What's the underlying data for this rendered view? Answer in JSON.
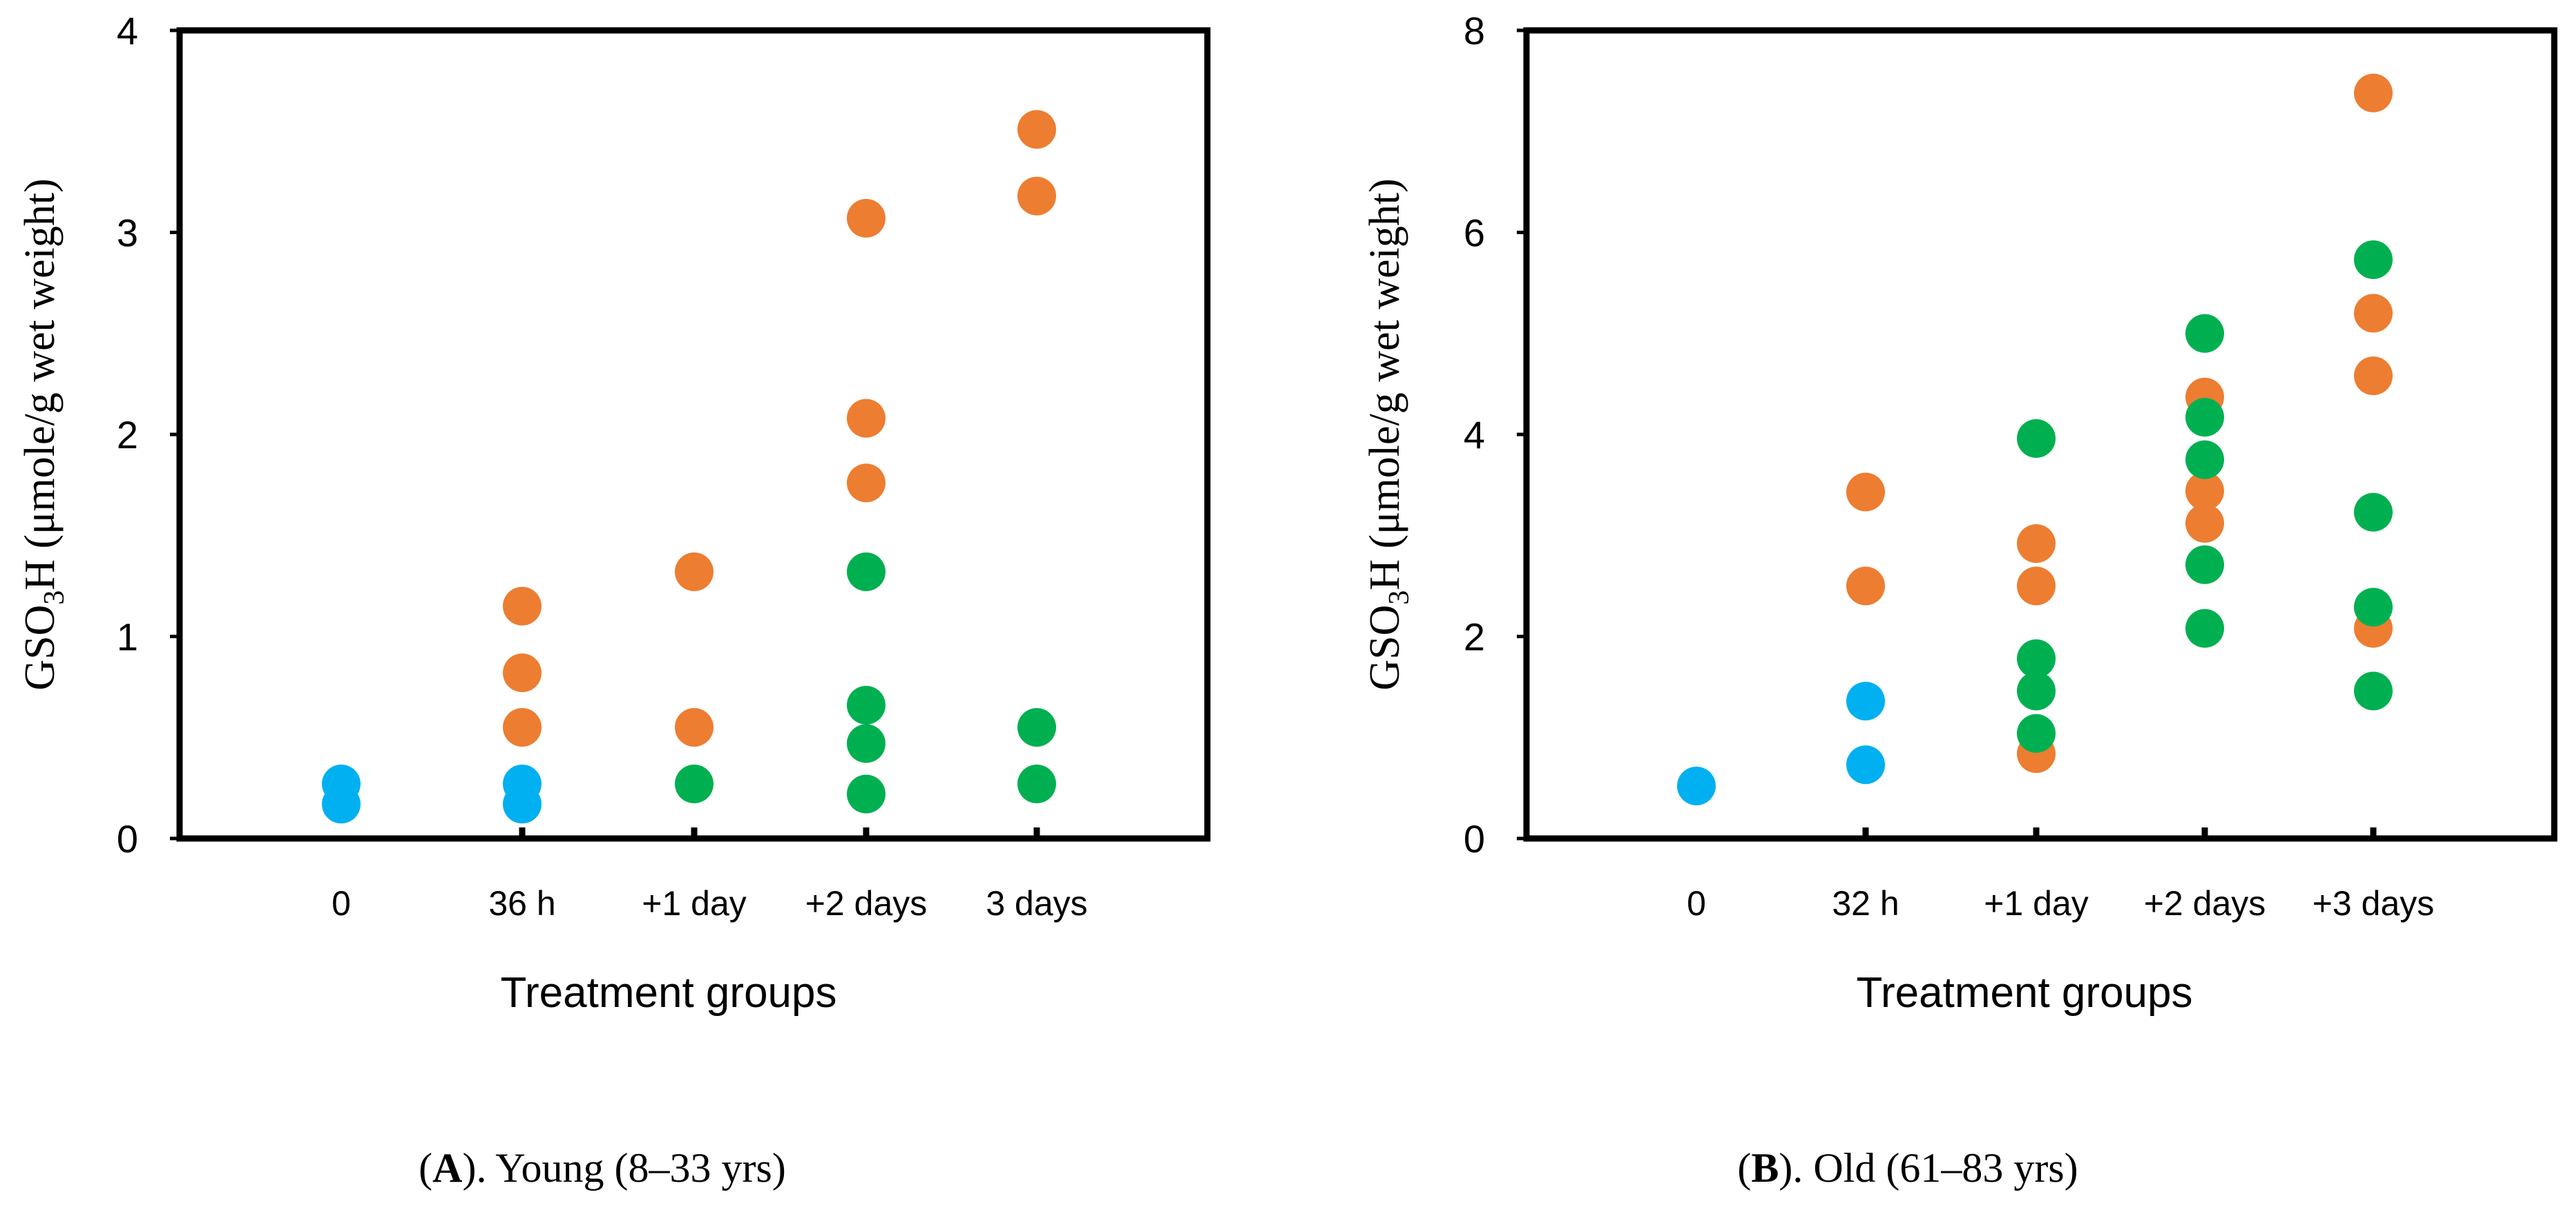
{
  "chart_data": [
    {
      "type": "scatter",
      "panel": "A",
      "caption_letter": "A",
      "caption_text": "). Young (8–33 yrs)",
      "xlabel": "Treatment groups",
      "ylabel": "GSO",
      "ylabel_sub": "3",
      "ylabel_rest": "H (μmole/g wet weight)",
      "ylim": [
        0,
        4
      ],
      "yticks": [
        "0",
        "1",
        "2",
        "3",
        "4"
      ],
      "categories": [
        "0",
        "36 h",
        "+1 day",
        "+2 days",
        "3 days"
      ],
      "series": [
        {
          "name": "blue",
          "color": "#00b0f0",
          "points": [
            [
              0,
              0.27
            ],
            [
              0,
              0.17
            ],
            [
              1,
              0.27
            ],
            [
              1,
              0.17
            ]
          ]
        },
        {
          "name": "orange",
          "color": "#ed7d31",
          "points": [
            [
              1,
              1.15
            ],
            [
              1,
              0.82
            ],
            [
              1,
              0.55
            ],
            [
              2,
              1.32
            ],
            [
              2,
              0.55
            ],
            [
              3,
              3.07
            ],
            [
              3,
              2.08
            ],
            [
              3,
              1.76
            ],
            [
              4,
              3.51
            ],
            [
              4,
              3.18
            ]
          ]
        },
        {
          "name": "green",
          "color": "#00b050",
          "points": [
            [
              2,
              0.27
            ],
            [
              3,
              1.32
            ],
            [
              3,
              0.66
            ],
            [
              3,
              0.47
            ],
            [
              3,
              0.22
            ],
            [
              4,
              0.55
            ],
            [
              4,
              0.27
            ]
          ]
        }
      ]
    },
    {
      "type": "scatter",
      "panel": "B",
      "caption_letter": "B",
      "caption_text": "). Old (61–83 yrs)",
      "xlabel": "Treatment groups",
      "ylabel": "GSO",
      "ylabel_sub": "3",
      "ylabel_rest": "H (μmole/g wet weight)",
      "ylim": [
        0,
        8
      ],
      "yticks": [
        "0",
        "2",
        "4",
        "6",
        "8"
      ],
      "categories": [
        "0",
        "32 h",
        "+1 day",
        "+2 days",
        "+3 days"
      ],
      "series": [
        {
          "name": "blue",
          "color": "#00b0f0",
          "points": [
            [
              0,
              0.52
            ],
            [
              1,
              1.36
            ],
            [
              1,
              0.73
            ]
          ]
        },
        {
          "name": "orange",
          "color": "#ed7d31",
          "points": [
            [
              1,
              3.43
            ],
            [
              1,
              2.5
            ],
            [
              2,
              2.92
            ],
            [
              2,
              2.5
            ],
            [
              2,
              0.84
            ],
            [
              3,
              4.37
            ],
            [
              3,
              3.44
            ],
            [
              3,
              3.12
            ],
            [
              4,
              7.38
            ],
            [
              4,
              5.2
            ],
            [
              4,
              4.58
            ],
            [
              4,
              2.08
            ]
          ]
        },
        {
          "name": "green",
          "color": "#00b050",
          "points": [
            [
              2,
              3.96
            ],
            [
              2,
              1.78
            ],
            [
              2,
              1.46
            ],
            [
              2,
              1.04
            ],
            [
              3,
              5.0
            ],
            [
              3,
              4.17
            ],
            [
              3,
              3.75
            ],
            [
              3,
              2.71
            ],
            [
              3,
              2.08
            ],
            [
              4,
              5.73
            ],
            [
              4,
              3.23
            ],
            [
              4,
              2.29
            ],
            [
              4,
              1.46
            ]
          ]
        }
      ]
    }
  ]
}
